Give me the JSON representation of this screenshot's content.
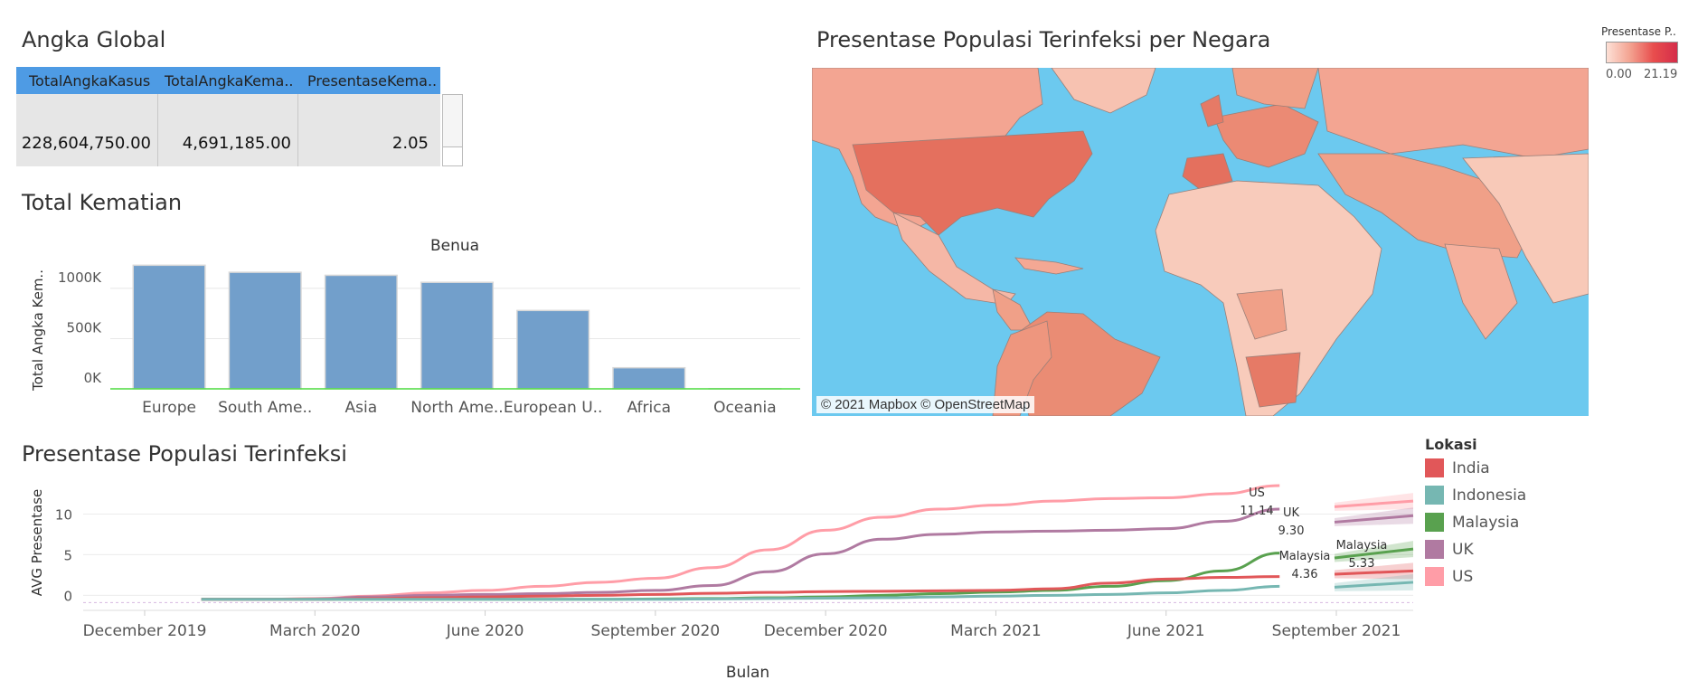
{
  "kpi": {
    "title": "Angka Global",
    "headers": [
      "TotalAngkaKasus",
      "TotalAngkaKema..",
      "PresentaseKema.."
    ],
    "values": [
      "228,604,750.00",
      "4,691,185.00",
      "2.05"
    ]
  },
  "map": {
    "title": "Presentase Populasi Terinfeksi per Negara",
    "attribution": "© 2021 Mapbox © OpenStreetMap",
    "legend_title": "Presentase P..",
    "legend_min": "0.00",
    "legend_max": "21.19",
    "colors": {
      "ocean": "#6cc9ef",
      "low": "#f8c9b8",
      "mid": "#f0a088",
      "high": "#e4705e"
    }
  },
  "legend": {
    "title": "Lokasi",
    "items": [
      {
        "name": "India",
        "color": "#e15759"
      },
      {
        "name": "Indonesia",
        "color": "#76b7b2"
      },
      {
        "name": "Malaysia",
        "color": "#59a14f"
      },
      {
        "name": "UK",
        "color": "#b07aa1"
      },
      {
        "name": "US",
        "color": "#ff9da7"
      }
    ]
  },
  "chart_data": [
    {
      "type": "bar",
      "title": "Total Kematian",
      "column_header": "Benua",
      "ylabel": "Total Angka Kem..",
      "xlabel": "",
      "categories": [
        "Europe",
        "South Ame..",
        "Asia",
        "North Ame..",
        "European U..",
        "Africa",
        "Oceania"
      ],
      "values": [
        1230000,
        1160000,
        1130000,
        1060000,
        780000,
        210000,
        1500
      ],
      "ylim": [
        0,
        1350000
      ],
      "yticks": [
        0,
        500000,
        1000000
      ],
      "ytick_labels": [
        "0K",
        "500K",
        "1000K"
      ],
      "color": "#729fcb"
    },
    {
      "type": "line",
      "title": "Presentase Populasi Terinfeksi",
      "xlabel": "Bulan",
      "ylabel": "AVG Presentase",
      "x": [
        "2020-01",
        "2020-02",
        "2020-03",
        "2020-04",
        "2020-05",
        "2020-06",
        "2020-07",
        "2020-08",
        "2020-09",
        "2020-10",
        "2020-11",
        "2020-12",
        "2021-01",
        "2021-02",
        "2021-03",
        "2021-04",
        "2021-05",
        "2021-06",
        "2021-07",
        "2021-08"
      ],
      "xticks": [
        "December 2019",
        "March 2020",
        "June 2020",
        "September 2020",
        "December 2020",
        "March 2021",
        "June 2021",
        "September 2021"
      ],
      "ylim": [
        -1.3,
        13.5
      ],
      "yticks": [
        0,
        5,
        10
      ],
      "series": [
        {
          "name": "US",
          "values": [
            -0.5,
            -0.5,
            -0.4,
            -0.1,
            0.3,
            0.6,
            1.1,
            1.6,
            2.1,
            3.4,
            5.6,
            8.0,
            9.6,
            10.6,
            11.1,
            11.6,
            11.9,
            12.0,
            12.5,
            13.5
          ]
        },
        {
          "name": "UK",
          "values": [
            -0.5,
            -0.5,
            -0.45,
            -0.2,
            0.0,
            0.1,
            0.2,
            0.35,
            0.6,
            1.2,
            2.9,
            5.1,
            6.9,
            7.5,
            7.8,
            7.9,
            8.0,
            8.2,
            9.1,
            10.6
          ]
        },
        {
          "name": "Malaysia",
          "values": [
            -0.5,
            -0.5,
            -0.5,
            -0.5,
            -0.5,
            -0.5,
            -0.5,
            -0.5,
            -0.45,
            -0.4,
            -0.3,
            -0.2,
            0.0,
            0.2,
            0.4,
            0.6,
            1.1,
            1.8,
            3.0,
            5.2
          ]
        },
        {
          "name": "India",
          "values": [
            -0.5,
            -0.5,
            -0.5,
            -0.4,
            -0.3,
            -0.2,
            -0.1,
            0.0,
            0.1,
            0.25,
            0.35,
            0.45,
            0.5,
            0.55,
            0.6,
            0.8,
            1.5,
            2.0,
            2.2,
            2.3
          ]
        },
        {
          "name": "Indonesia",
          "values": [
            -0.5,
            -0.5,
            -0.5,
            -0.5,
            -0.5,
            -0.5,
            -0.5,
            -0.5,
            -0.5,
            -0.45,
            -0.4,
            -0.35,
            -0.3,
            -0.2,
            -0.1,
            0.0,
            0.1,
            0.3,
            0.6,
            1.1
          ]
        }
      ],
      "forecast": [
        {
          "name": "US",
          "start": 10.9,
          "end": 11.6
        },
        {
          "name": "UK",
          "start": 9.0,
          "end": 9.8
        },
        {
          "name": "Malaysia",
          "start": 4.6,
          "end": 5.7
        },
        {
          "name": "India",
          "start": 2.6,
          "end": 3.0
        },
        {
          "name": "Indonesia",
          "start": 1.0,
          "end": 1.6
        }
      ],
      "annotations": [
        {
          "label": "US",
          "value": "11.14"
        },
        {
          "label": "UK",
          "value": "9.30"
        },
        {
          "label": "Malaysia",
          "value": "4.36"
        },
        {
          "label": "Malaysia",
          "value": "5.33"
        }
      ]
    }
  ]
}
